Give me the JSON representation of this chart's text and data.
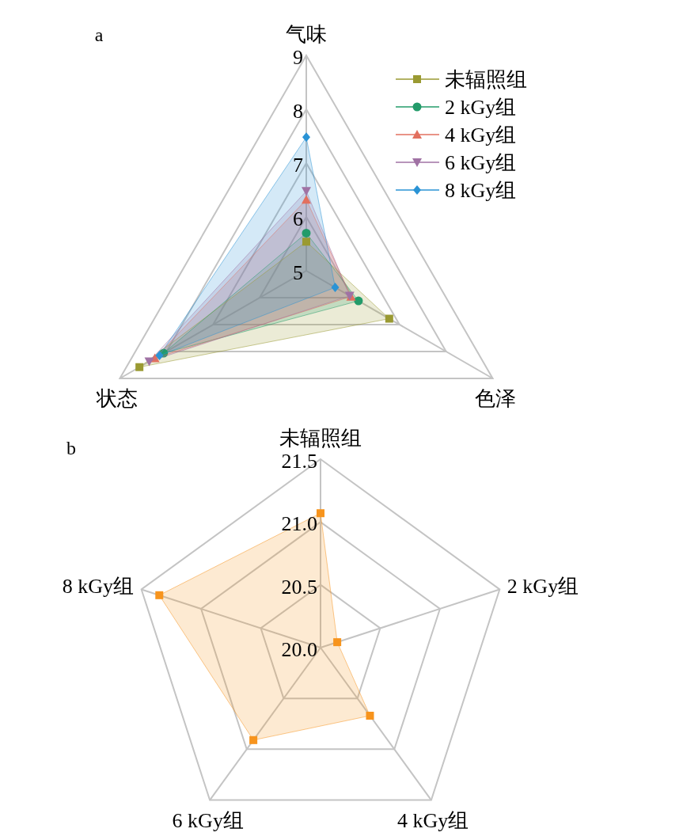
{
  "chart_data": [
    {
      "type": "radar",
      "categories": [
        "气味",
        "色泽",
        "状态"
      ],
      "ylim": [
        5,
        9
      ],
      "yticks": [
        5,
        6,
        7,
        8,
        9
      ],
      "legend": "top right",
      "annotations": [
        "a"
      ],
      "series": [
        {
          "name": "未辐照组",
          "color": "#9a9a32",
          "marker": "square",
          "values": [
            5.54,
            6.78,
            8.58
          ]
        },
        {
          "name": "2 kGy组",
          "color": "#239b6a",
          "marker": "circle",
          "values": [
            5.7,
            6.12,
            8.06
          ]
        },
        {
          "name": "4 kGy组",
          "color": "#e2705f",
          "marker": "triangle",
          "values": [
            6.32,
            5.96,
            8.25
          ]
        },
        {
          "name": "6 kGy组",
          "color": "#a072a4",
          "marker": "triangle_down",
          "values": [
            6.48,
            5.93,
            8.37
          ]
        },
        {
          "name": "8 kGy组",
          "color": "#2a93d5",
          "marker": "diamond",
          "values": [
            7.48,
            5.62,
            8.15
          ]
        }
      ]
    },
    {
      "type": "radar",
      "categories": [
        "未辐照组",
        "2 kGy组",
        "4 kGy组",
        "6 kGy组",
        "8 kGy组"
      ],
      "ylim": [
        20,
        21.5
      ],
      "yticks": [
        {
          "value": 20,
          "label": "20.0"
        },
        20.5,
        {
          "value": 21,
          "label": "21.0"
        },
        21.5
      ],
      "annotations": [
        "b"
      ],
      "series": [
        {
          "color": "#f7941d",
          "marker": "square",
          "values": [
            21.07,
            20.14,
            20.67,
            20.91,
            21.35
          ]
        }
      ]
    }
  ]
}
